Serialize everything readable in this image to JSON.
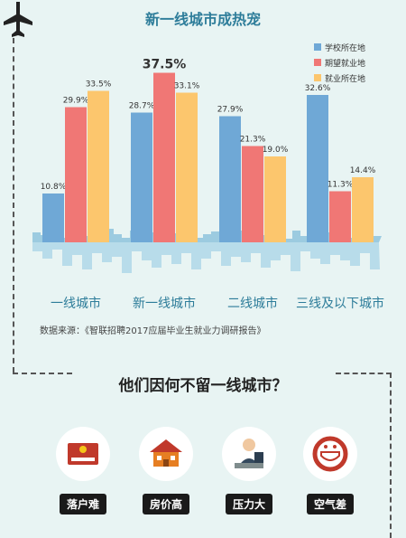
{
  "page": {
    "title": "新一线城市成热宠",
    "source": "数据来源：《智联招聘2017应届毕业生就业力调研报告》",
    "subtitle": "他们因何不留一线城市？"
  },
  "chart_data": {
    "type": "bar",
    "title": "新一线城市成热宠",
    "categories": [
      "一线城市",
      "新一线城市",
      "二线城市",
      "三线及以下城市"
    ],
    "series": [
      {
        "name": "学校所在地",
        "color": "#6fa8d6",
        "values": [
          10.8,
          28.7,
          27.9,
          32.6
        ]
      },
      {
        "name": "期望就业地",
        "color": "#f07775",
        "values": [
          29.9,
          37.5,
          21.3,
          11.3
        ]
      },
      {
        "name": "就业所在地",
        "color": "#fcc66d",
        "values": [
          33.5,
          33.1,
          19.0,
          14.4
        ]
      }
    ],
    "value_labels": [
      [
        "10.8%",
        "29.9%",
        "33.5%"
      ],
      [
        "28.7%",
        "37.5%",
        "33.1%"
      ],
      [
        "27.9%",
        "21.3%",
        "19.0%"
      ],
      [
        "32.6%",
        "11.3%",
        "14.4%"
      ]
    ],
    "ylim": [
      0,
      40
    ],
    "legend_position": "top-right",
    "grid": false
  },
  "reasons": [
    {
      "label": "落户难",
      "icon": "household-registration-icon"
    },
    {
      "label": "房价高",
      "icon": "house-icon"
    },
    {
      "label": "压力大",
      "icon": "stressed-worker-icon"
    },
    {
      "label": "空气差",
      "icon": "face-mask-icon"
    }
  ]
}
